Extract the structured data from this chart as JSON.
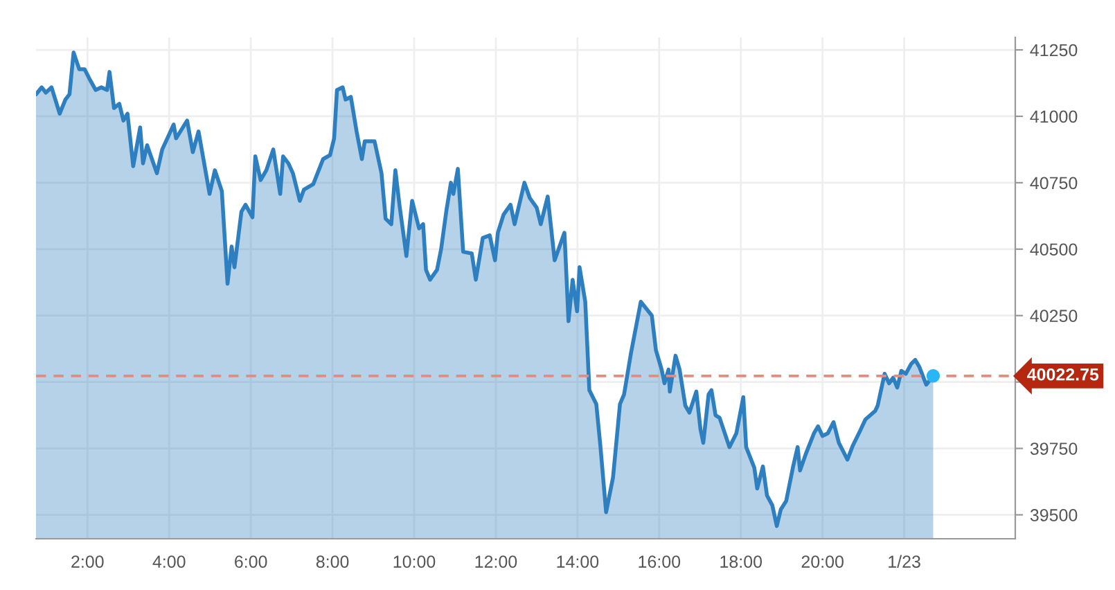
{
  "chart_data": {
    "type": "area",
    "x": [
      0.74,
      0.88,
      0.98,
      1.12,
      1.32,
      1.46,
      1.56,
      1.66,
      1.8,
      1.93,
      2.07,
      2.2,
      2.34,
      2.48,
      2.54,
      2.65,
      2.78,
      2.88,
      2.98,
      3.12,
      3.29,
      3.36,
      3.46,
      3.7,
      3.83,
      4.0,
      4.11,
      4.17,
      4.44,
      4.58,
      4.72,
      4.99,
      5.12,
      5.29,
      5.43,
      5.53,
      5.6,
      5.77,
      5.87,
      6.04,
      6.11,
      6.24,
      6.38,
      6.55,
      6.72,
      6.79,
      6.92,
      7.03,
      7.2,
      7.3,
      7.53,
      7.77,
      7.94,
      8.04,
      8.11,
      8.25,
      8.32,
      8.45,
      8.59,
      8.72,
      8.79,
      8.96,
      9.03,
      9.2,
      9.3,
      9.44,
      9.54,
      9.64,
      9.81,
      9.95,
      10.12,
      10.22,
      10.29,
      10.39,
      10.56,
      10.66,
      10.79,
      10.9,
      10.96,
      11.07,
      11.2,
      11.41,
      11.51,
      11.68,
      11.85,
      11.98,
      12.05,
      12.19,
      12.36,
      12.46,
      12.7,
      12.83,
      13.0,
      13.1,
      13.27,
      13.44,
      13.68,
      13.78,
      13.88,
      13.99,
      14.05,
      14.19,
      14.29,
      14.46,
      14.56,
      14.7,
      14.87,
      15.04,
      15.14,
      15.31,
      15.55,
      15.82,
      15.92,
      16.06,
      16.13,
      16.23,
      16.26,
      16.4,
      16.5,
      16.64,
      16.74,
      16.91,
      17.01,
      17.08,
      17.21,
      17.28,
      17.38,
      17.48,
      17.72,
      17.89,
      18.06,
      18.13,
      18.33,
      18.4,
      18.54,
      18.64,
      18.77,
      18.88,
      18.98,
      19.11,
      19.28,
      19.39,
      19.45,
      19.59,
      19.79,
      19.89,
      20.0,
      20.13,
      20.27,
      20.4,
      20.61,
      20.74,
      20.91,
      21.05,
      21.29,
      21.35,
      21.52,
      21.63,
      21.73,
      21.83,
      21.93,
      22.04,
      22.17,
      22.27,
      22.37,
      22.54,
      22.71
    ],
    "series": [
      {
        "color": "#2e7fc0",
        "values": [
          41083,
          41109,
          41089,
          41109,
          41010,
          41063,
          41083,
          41240,
          41177,
          41177,
          41135,
          41099,
          41109,
          41099,
          41167,
          41031,
          41047,
          40984,
          41010,
          40812,
          40958,
          40823,
          40891,
          40786,
          40875,
          40932,
          40969,
          40917,
          40984,
          40865,
          40943,
          40708,
          40797,
          40719,
          40370,
          40510,
          40432,
          40641,
          40667,
          40620,
          40849,
          40760,
          40797,
          40875,
          40708,
          40849,
          40823,
          40786,
          40682,
          40724,
          40745,
          40839,
          40854,
          40917,
          41099,
          41109,
          41063,
          41073,
          40943,
          40839,
          40906,
          40906,
          40906,
          40786,
          40615,
          40594,
          40797,
          40667,
          40474,
          40682,
          40578,
          40594,
          40422,
          40385,
          40422,
          40500,
          40646,
          40750,
          40708,
          40802,
          40490,
          40484,
          40385,
          40542,
          40552,
          40458,
          40562,
          40630,
          40667,
          40594,
          40750,
          40693,
          40656,
          40594,
          40698,
          40458,
          40562,
          40229,
          40385,
          40266,
          40432,
          40302,
          39969,
          39917,
          39760,
          39510,
          39641,
          39917,
          39953,
          40109,
          40302,
          40250,
          40120,
          40047,
          39995,
          40047,
          39964,
          40099,
          40047,
          39911,
          39885,
          39964,
          39823,
          39771,
          39953,
          39969,
          39875,
          39865,
          39755,
          39807,
          39943,
          39755,
          39677,
          39599,
          39682,
          39573,
          39536,
          39458,
          39521,
          39552,
          39682,
          39755,
          39667,
          39729,
          39807,
          39833,
          39797,
          39807,
          39849,
          39771,
          39708,
          39760,
          39813,
          39859,
          39891,
          39911,
          40031,
          39995,
          40016,
          39979,
          40042,
          40031,
          40068,
          40083,
          40057,
          39990,
          40023
        ]
      }
    ],
    "xlim": [
      0.74,
      24.72
    ],
    "xticks": [
      {
        "value": 2,
        "label": "2:00"
      },
      {
        "value": 4,
        "label": "4:00"
      },
      {
        "value": 6,
        "label": "6:00"
      },
      {
        "value": 8,
        "label": "8:00"
      },
      {
        "value": 10,
        "label": "10:00"
      },
      {
        "value": 12,
        "label": "12:00"
      },
      {
        "value": 14,
        "label": "14:00"
      },
      {
        "value": 16,
        "label": "16:00"
      },
      {
        "value": 18,
        "label": "18:00"
      },
      {
        "value": 20,
        "label": "20:00"
      },
      {
        "value": 22,
        "label": "1/23"
      }
    ],
    "ylim": [
      39410,
      41297
    ],
    "yticks": [
      39500,
      39750,
      {
        "value": 40000,
        "label": null
      },
      40250,
      40500,
      40750,
      41000,
      41250
    ],
    "ref_lines": [
      {
        "axis": "y",
        "value": 40022.75,
        "label": "40022.75",
        "color": "#e8897a",
        "line_style": "dashed"
      }
    ],
    "grid": true
  }
}
